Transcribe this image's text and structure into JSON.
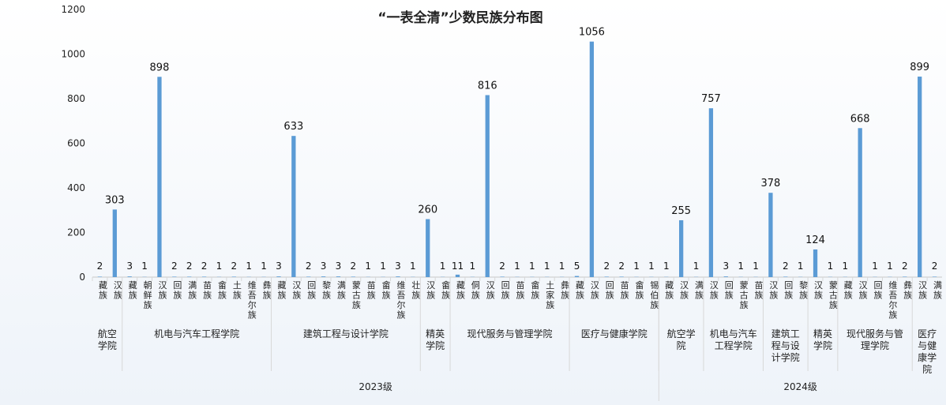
{
  "chart_data": {
    "type": "bar",
    "title": "“一表全清”少数民族分布图",
    "ylim": [
      0,
      1200
    ],
    "yticks": [
      0,
      200,
      400,
      600,
      800,
      1000,
      1200
    ],
    "color": "#5b9bd5",
    "categories": [
      "藏族",
      "汉族",
      "藏族",
      "朝鲜族",
      "汉族",
      "回族",
      "满族",
      "苗族",
      "畲族",
      "土族",
      "维吾尔族",
      "彝族",
      "藏族",
      "汉族",
      "回族",
      "黎族",
      "满族",
      "蒙古族",
      "苗族",
      "畲族",
      "维吾尔族",
      "壮族",
      "汉族",
      "畲族",
      "藏族",
      "侗族",
      "汉族",
      "回族",
      "苗族",
      "畲族",
      "土家族",
      "彝族",
      "藏族",
      "汉族",
      "回族",
      "苗族",
      "畲族",
      "锡伯族",
      "藏族",
      "汉族",
      "满族",
      "汉族",
      "回族",
      "蒙古族",
      "苗族",
      "汉族",
      "回族",
      "黎族",
      "汉族",
      "蒙古族",
      "藏族",
      "汉族",
      "回族",
      "维吾尔族",
      "彝族",
      "汉族",
      "满族"
    ],
    "values": [
      2,
      303,
      3,
      1,
      898,
      2,
      2,
      2,
      1,
      2,
      1,
      1,
      3,
      633,
      2,
      3,
      3,
      2,
      1,
      1,
      3,
      1,
      260,
      1,
      11,
      1,
      816,
      2,
      1,
      1,
      1,
      1,
      5,
      1056,
      2,
      2,
      1,
      1,
      1,
      255,
      1,
      757,
      3,
      1,
      1,
      378,
      2,
      1,
      124,
      1,
      1,
      668,
      1,
      1,
      2,
      899,
      2
    ],
    "groups": [
      {
        "label": "航空学院",
        "start": 0,
        "end": 1
      },
      {
        "label": "机电与汽车工程学院",
        "start": 2,
        "end": 11
      },
      {
        "label": "建筑工程与设计学院",
        "start": 12,
        "end": 21
      },
      {
        "label": "精英学院",
        "start": 22,
        "end": 23
      },
      {
        "label": "现代服务与管理学院",
        "start": 24,
        "end": 31
      },
      {
        "label": "医疗与健康学院",
        "start": 32,
        "end": 37
      },
      {
        "label": "航空学院",
        "start": 38,
        "end": 40
      },
      {
        "label": "机电与汽车工程学院",
        "start": 41,
        "end": 44
      },
      {
        "label": "建筑工程与设计学院",
        "start": 45,
        "end": 47
      },
      {
        "label": "精英学院",
        "start": 48,
        "end": 49
      },
      {
        "label": "现代服务与管理学院",
        "start": 50,
        "end": 54
      },
      {
        "label": "医疗与健康学院",
        "start": 55,
        "end": 56
      }
    ],
    "years": [
      {
        "label": "2023级",
        "start": 0,
        "end": 37
      },
      {
        "label": "2024级",
        "start": 38,
        "end": 56
      }
    ]
  }
}
